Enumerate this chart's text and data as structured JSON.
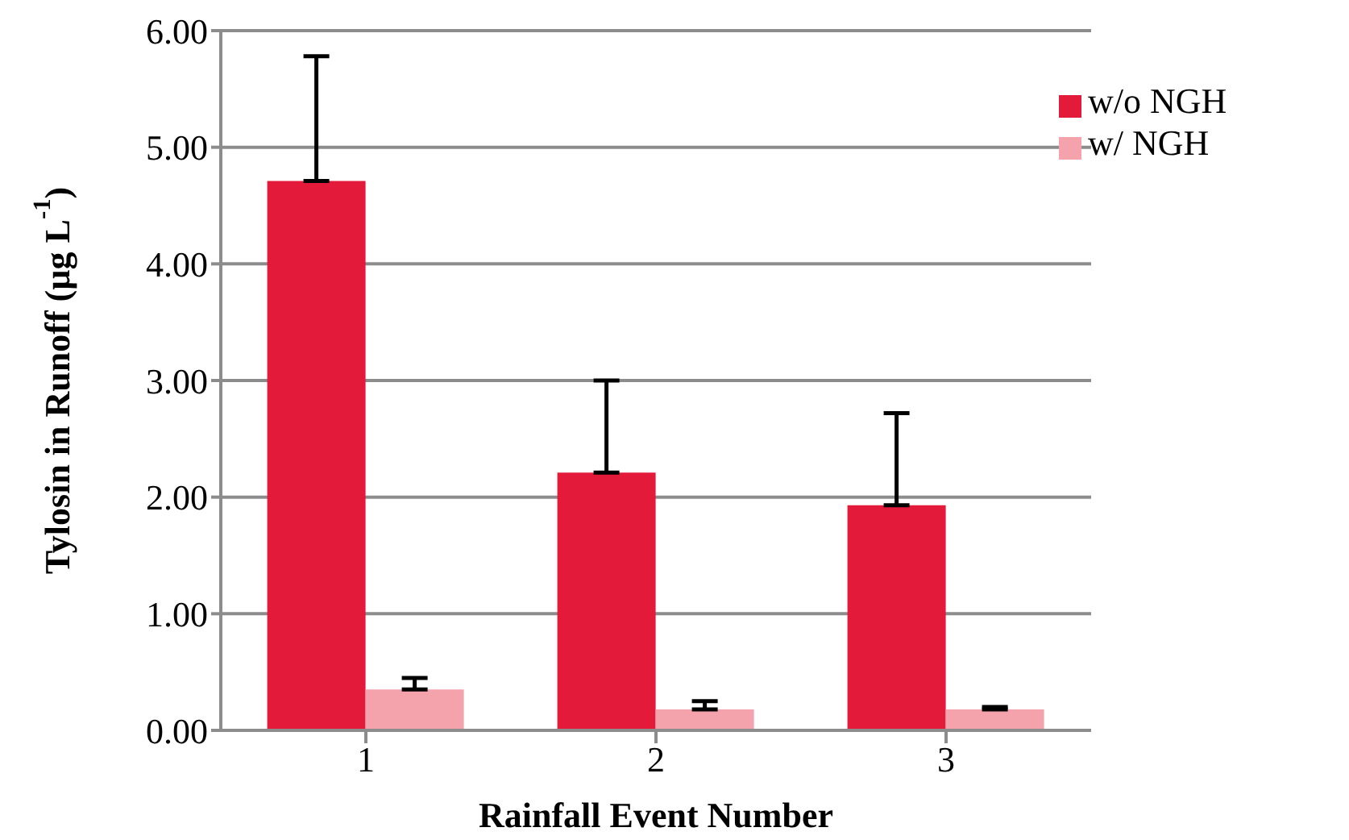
{
  "chart_data": {
    "type": "bar",
    "xlabel": "Rainfall Event Number",
    "ylabel": "Tylosin in Runoff (µg L$^{-1}$)",
    "categories": [
      "1",
      "2",
      "3"
    ],
    "series": [
      {
        "name": "w/o NGH",
        "color": "#e31a39",
        "values": [
          4.71,
          2.21,
          1.93
        ],
        "errors": [
          [
            4.71,
            5.78
          ],
          [
            2.21,
            3.0
          ],
          [
            1.93,
            2.72
          ]
        ]
      },
      {
        "name": "w/ NGH",
        "color": "#f4a2ac",
        "values": [
          0.35,
          0.18,
          0.18
        ],
        "errors": [
          [
            0.35,
            0.45
          ],
          [
            0.18,
            0.25
          ],
          [
            0.18,
            0.2
          ]
        ]
      }
    ],
    "ylim": [
      0,
      6
    ],
    "yticks": [
      {
        "value": 0,
        "label": "0.00"
      },
      {
        "value": 1,
        "label": "1.00"
      },
      {
        "value": 2,
        "label": "2.00"
      },
      {
        "value": 3,
        "label": "3.00"
      },
      {
        "value": 4,
        "label": "4.00"
      },
      {
        "value": 5,
        "label": "5.00"
      },
      {
        "value": 6,
        "label": "6.00"
      }
    ],
    "grid": "y",
    "legend": "top right"
  }
}
